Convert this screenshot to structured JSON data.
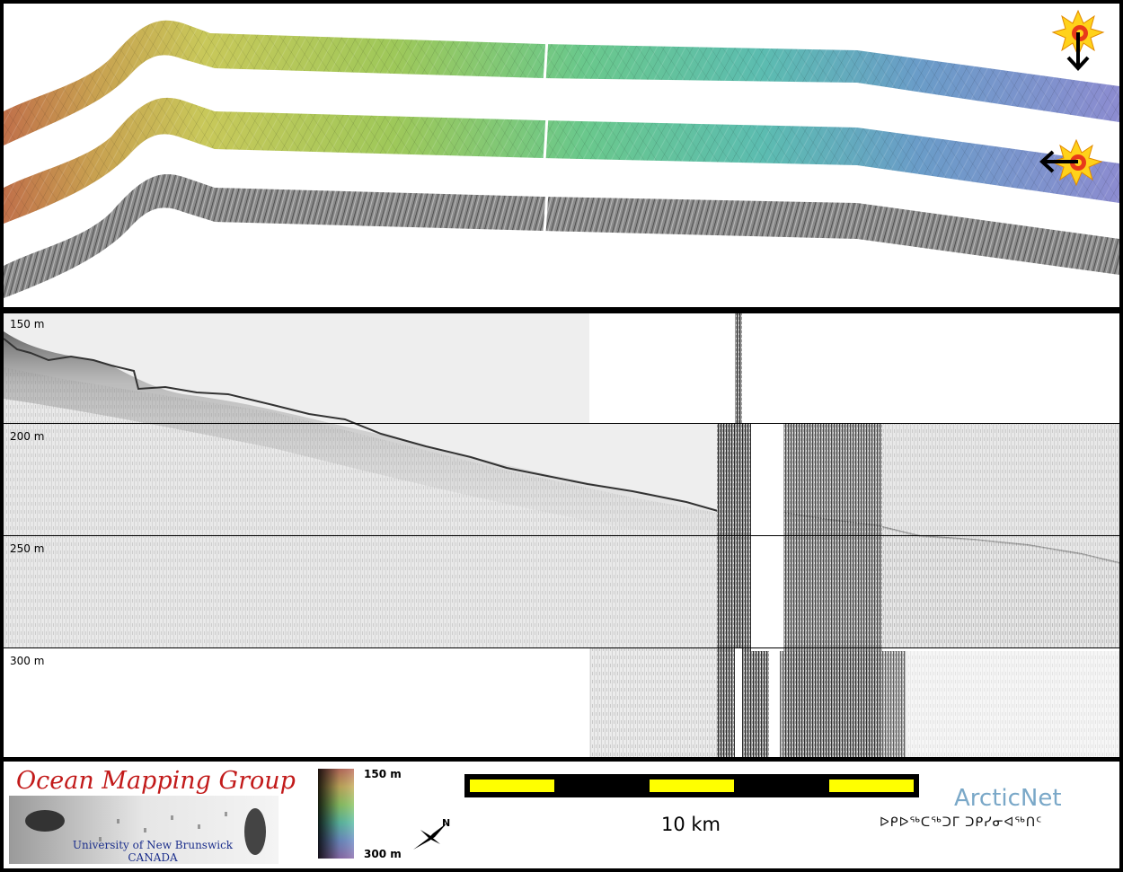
{
  "strips": {
    "items": [
      {
        "name": "colour-shaded-strip-north-sun",
        "colored": true
      },
      {
        "name": "colour-shaded-strip-east-sun",
        "colored": true
      },
      {
        "name": "backscatter-strip",
        "colored": false
      }
    ]
  },
  "profile": {
    "depth_labels": [
      "150 m",
      "200 m",
      "250 m",
      "300 m"
    ]
  },
  "footer": {
    "logo_title": "Ocean Mapping Group",
    "logo_university": "University of New Brunswick",
    "logo_country": "CANADA",
    "colorbar_min": "150 m",
    "colorbar_max": "300 m",
    "north_letter": "N",
    "scale_label": "10 km",
    "partner_name": "ArcticNet",
    "partner_inuktitut": "ᐅᑭᐅᖅᑕᖅᑐᒥ ᑐᑭᓯᓂᐊᖅᑎᑦ"
  },
  "colors": {
    "scale_yellow": "#ffff00",
    "logo_red": "#c21a1a",
    "logo_blue": "#1c2f8c",
    "arctic_blue": "#7aa8c8"
  }
}
